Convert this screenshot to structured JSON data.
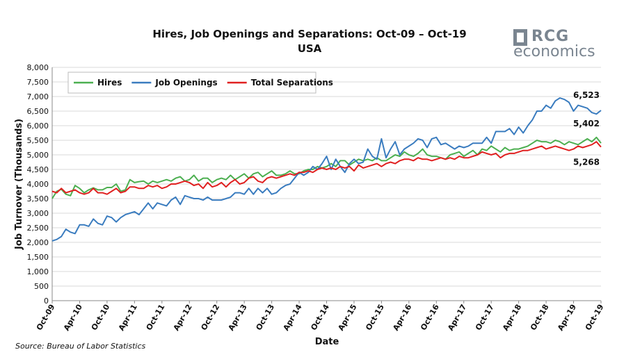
{
  "logo": {
    "line1": "RCG",
    "line2": "economics"
  },
  "source": "Source: Bureau of Labor Statistics",
  "chart_data": {
    "type": "line",
    "title": "Hires, Job Openings and Separations: Oct-09 – Oct-19",
    "subtitle": "USA",
    "xlabel": "Date",
    "ylabel": "Job Turnover (Thousands)",
    "ylim": [
      0,
      8000
    ],
    "yticks": [
      0,
      500,
      1000,
      1500,
      2000,
      2500,
      3000,
      3500,
      4000,
      4500,
      5000,
      5500,
      6000,
      6500,
      7000,
      7500,
      8000
    ],
    "ytick_labels": [
      "0",
      "500",
      "1,000",
      "1,500",
      "2,000",
      "2,500",
      "3,000",
      "3,500",
      "4,000",
      "4,500",
      "5,000",
      "5,500",
      "6,000",
      "6,500",
      "7,000",
      "7,500",
      "8,000"
    ],
    "xticks": [
      "Oct-09",
      "Apr-10",
      "Oct-10",
      "Apr-11",
      "Oct-11",
      "Apr-12",
      "Oct-12",
      "Apr-13",
      "Oct-13",
      "Apr-14",
      "Oct-14",
      "Apr-15",
      "Oct-15",
      "Apr-16",
      "Oct-16",
      "Apr-17",
      "Oct-17",
      "Apr-18",
      "Oct-18",
      "Apr-19",
      "Oct-19"
    ],
    "grid": true,
    "legend_position": "top-left",
    "colors": {
      "Hires": "#4caf50",
      "Job Openings": "#3a7cbf",
      "Total Separations": "#e02020"
    },
    "end_labels": {
      "Job Openings": "6,523",
      "Hires": "5,402",
      "Total Separations": "5,268"
    },
    "series": [
      {
        "name": "Hires",
        "values": [
          3500,
          3750,
          3820,
          3650,
          3600,
          3950,
          3850,
          3700,
          3800,
          3870,
          3800,
          3800,
          3880,
          3880,
          4000,
          3750,
          3800,
          4150,
          4050,
          4080,
          4100,
          4000,
          4100,
          4050,
          4100,
          4150,
          4100,
          4200,
          4250,
          4100,
          4150,
          4300,
          4100,
          4200,
          4200,
          4050,
          4150,
          4200,
          4150,
          4300,
          4150,
          4250,
          4350,
          4200,
          4350,
          4400,
          4250,
          4350,
          4450,
          4300,
          4300,
          4350,
          4450,
          4350,
          4350,
          4450,
          4500,
          4500,
          4600,
          4550,
          4600,
          4700,
          4600,
          4800,
          4800,
          4650,
          4750,
          4850,
          4800,
          4850,
          4800,
          4900,
          4800,
          4800,
          4900,
          5000,
          4950,
          5100,
          5000,
          4950,
          5050,
          5200,
          5000,
          4950,
          4950,
          4900,
          4850,
          5000,
          5050,
          5100,
          4950,
          5050,
          5150,
          5000,
          5200,
          5150,
          5300,
          5200,
          5100,
          5250,
          5150,
          5200,
          5200,
          5250,
          5300,
          5400,
          5500,
          5450,
          5450,
          5400,
          5500,
          5450,
          5350,
          5450,
          5400,
          5350,
          5450,
          5550,
          5450,
          5600,
          5402
        ]
      },
      {
        "name": "Job Openings",
        "values": [
          2050,
          2100,
          2200,
          2450,
          2350,
          2300,
          2600,
          2600,
          2550,
          2800,
          2650,
          2600,
          2900,
          2850,
          2700,
          2850,
          2950,
          3000,
          3050,
          2950,
          3150,
          3350,
          3150,
          3350,
          3300,
          3250,
          3450,
          3550,
          3300,
          3600,
          3550,
          3500,
          3500,
          3450,
          3550,
          3450,
          3450,
          3450,
          3500,
          3550,
          3700,
          3700,
          3650,
          3850,
          3650,
          3850,
          3700,
          3850,
          3650,
          3700,
          3850,
          3950,
          4000,
          4200,
          4400,
          4300,
          4400,
          4600,
          4500,
          4700,
          4950,
          4500,
          4850,
          4600,
          4400,
          4700,
          4850,
          4700,
          4750,
          5200,
          4950,
          4850,
          5550,
          4900,
          5200,
          5450,
          5000,
          5200,
          5300,
          5400,
          5550,
          5500,
          5250,
          5550,
          5600,
          5350,
          5400,
          5300,
          5200,
          5300,
          5250,
          5300,
          5400,
          5400,
          5400,
          5600,
          5400,
          5800,
          5800,
          5800,
          5900,
          5700,
          5950,
          5750,
          6000,
          6200,
          6500,
          6500,
          6700,
          6600,
          6850,
          6950,
          6900,
          6800,
          6500,
          6700,
          6650,
          6600,
          6450,
          6400,
          6523
        ]
      },
      {
        "name": "Total Separations",
        "values": [
          3750,
          3700,
          3850,
          3700,
          3750,
          3800,
          3700,
          3650,
          3700,
          3850,
          3700,
          3700,
          3650,
          3750,
          3850,
          3700,
          3750,
          3900,
          3900,
          3850,
          3850,
          3950,
          3900,
          3950,
          3850,
          3900,
          4000,
          4000,
          4050,
          4100,
          4050,
          3950,
          4000,
          3850,
          4050,
          3900,
          3950,
          4050,
          3900,
          4050,
          4150,
          4000,
          4050,
          4200,
          4250,
          4100,
          4050,
          4200,
          4250,
          4200,
          4250,
          4300,
          4350,
          4300,
          4400,
          4400,
          4450,
          4400,
          4500,
          4550,
          4500,
          4550,
          4500,
          4600,
          4550,
          4600,
          4450,
          4650,
          4550,
          4600,
          4650,
          4700,
          4600,
          4700,
          4750,
          4700,
          4800,
          4850,
          4850,
          4800,
          4900,
          4850,
          4850,
          4800,
          4850,
          4900,
          4850,
          4900,
          4850,
          4950,
          4900,
          4900,
          4950,
          5000,
          5100,
          5050,
          5000,
          5050,
          4900,
          5000,
          5050,
          5050,
          5100,
          5150,
          5150,
          5200,
          5250,
          5300,
          5200,
          5250,
          5300,
          5250,
          5200,
          5150,
          5200,
          5300,
          5250,
          5300,
          5350,
          5450,
          5268
        ]
      }
    ]
  }
}
